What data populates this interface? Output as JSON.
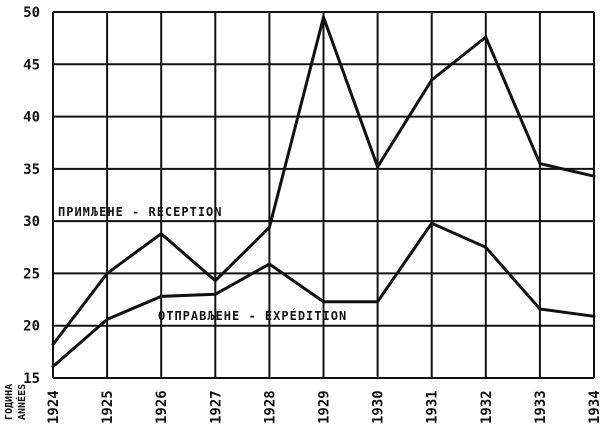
{
  "chart_data": {
    "type": "line",
    "x_title": [
      "ГОДИНА",
      "ANNÉES"
    ],
    "categories": [
      "1924",
      "1925",
      "1926",
      "1927",
      "1928",
      "1929",
      "1930",
      "1931",
      "1932",
      "1933",
      "1934"
    ],
    "ylim": [
      15,
      50
    ],
    "yticks": [
      "15",
      "20",
      "25",
      "30",
      "35",
      "40",
      "45",
      "50"
    ],
    "grid": true,
    "series": [
      {
        "name": "ПРИМЉЕНЕ - RECEPTION",
        "values": [
          18.2,
          25.0,
          28.8,
          24.3,
          29.4,
          49.5,
          35.2,
          43.5,
          47.6,
          35.5,
          34.3
        ]
      },
      {
        "name": "ОТПРАВЉЕНЕ - EXPÉDITION",
        "values": [
          16.1,
          20.6,
          22.8,
          23.0,
          25.9,
          22.3,
          22.3,
          29.8,
          27.5,
          21.6,
          20.9
        ]
      }
    ]
  }
}
